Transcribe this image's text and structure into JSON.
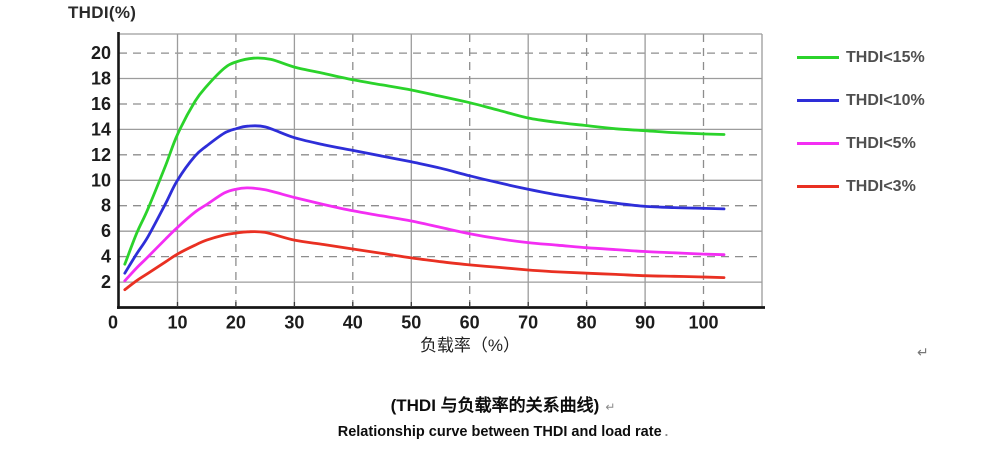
{
  "chart": {
    "y_axis_title": "THDI(%)",
    "x_axis_title": "负载率（%）"
  },
  "captions": {
    "chinese": "(THDI 与负载率的关系曲线)",
    "english": "Relationship curve between THDI and load rate"
  },
  "marks": {
    "return_mark": "↵",
    "dot_mark": "."
  },
  "chart_data": {
    "type": "line",
    "title": "",
    "xlabel": "负载率（%）",
    "ylabel": "THDI(%)",
    "xlim": [
      0,
      110
    ],
    "ylim": [
      0,
      21.5
    ],
    "x_ticks": [
      0,
      10,
      20,
      30,
      40,
      50,
      60,
      70,
      80,
      90,
      100
    ],
    "y_ticks": [
      2,
      4,
      6,
      8,
      10,
      12,
      14,
      16,
      18,
      20
    ],
    "grid": "on",
    "legend_position": "right",
    "x_gridlines": [
      {
        "v": 10,
        "dash": false
      },
      {
        "v": 20,
        "dash": true
      },
      {
        "v": 30,
        "dash": false
      },
      {
        "v": 40,
        "dash": true
      },
      {
        "v": 50,
        "dash": false
      },
      {
        "v": 60,
        "dash": true
      },
      {
        "v": 70,
        "dash": false
      },
      {
        "v": 80,
        "dash": true
      },
      {
        "v": 90,
        "dash": false
      },
      {
        "v": 100,
        "dash": true
      }
    ],
    "y_gridlines": [
      {
        "v": 2,
        "dash": false
      },
      {
        "v": 4,
        "dash": true
      },
      {
        "v": 6,
        "dash": false
      },
      {
        "v": 8,
        "dash": true
      },
      {
        "v": 10,
        "dash": false
      },
      {
        "v": 12,
        "dash": true
      },
      {
        "v": 14,
        "dash": false
      },
      {
        "v": 16,
        "dash": true
      },
      {
        "v": 18,
        "dash": false
      },
      {
        "v": 20,
        "dash": true
      }
    ],
    "series": [
      {
        "name": "thdi-15",
        "label": "THDI<15%",
        "color": "#2bd32b",
        "points": [
          [
            1,
            3.4
          ],
          [
            3,
            5.8
          ],
          [
            5,
            7.8
          ],
          [
            8,
            11.2
          ],
          [
            10,
            13.6
          ],
          [
            13,
            16.2
          ],
          [
            15,
            17.4
          ],
          [
            18,
            18.8
          ],
          [
            20,
            19.3
          ],
          [
            23,
            19.6
          ],
          [
            26,
            19.5
          ],
          [
            30,
            18.9
          ],
          [
            35,
            18.4
          ],
          [
            40,
            17.9
          ],
          [
            45,
            17.5
          ],
          [
            50,
            17.1
          ],
          [
            55,
            16.6
          ],
          [
            60,
            16.1
          ],
          [
            65,
            15.5
          ],
          [
            70,
            14.9
          ],
          [
            75,
            14.55
          ],
          [
            80,
            14.3
          ],
          [
            85,
            14.05
          ],
          [
            90,
            13.9
          ],
          [
            95,
            13.75
          ],
          [
            100,
            13.65
          ],
          [
            103.5,
            13.6
          ]
        ]
      },
      {
        "name": "thdi-10",
        "label": "THDI<10%",
        "color": "#2e2ed8",
        "points": [
          [
            1,
            2.7
          ],
          [
            3,
            4.2
          ],
          [
            5,
            5.6
          ],
          [
            8,
            8.2
          ],
          [
            10,
            10.0
          ],
          [
            13,
            11.9
          ],
          [
            15,
            12.7
          ],
          [
            18,
            13.7
          ],
          [
            20,
            14.05
          ],
          [
            22,
            14.25
          ],
          [
            25,
            14.2
          ],
          [
            30,
            13.35
          ],
          [
            35,
            12.8
          ],
          [
            40,
            12.35
          ],
          [
            45,
            11.9
          ],
          [
            50,
            11.45
          ],
          [
            55,
            10.95
          ],
          [
            60,
            10.35
          ],
          [
            65,
            9.8
          ],
          [
            70,
            9.3
          ],
          [
            75,
            8.85
          ],
          [
            80,
            8.5
          ],
          [
            85,
            8.2
          ],
          [
            90,
            7.95
          ],
          [
            95,
            7.85
          ],
          [
            100,
            7.8
          ],
          [
            103.5,
            7.75
          ]
        ]
      },
      {
        "name": "thdi-5",
        "label": "THDI<5%",
        "color": "#f32ef3",
        "points": [
          [
            1,
            2.1
          ],
          [
            3,
            3.1
          ],
          [
            5,
            4.0
          ],
          [
            8,
            5.4
          ],
          [
            10,
            6.3
          ],
          [
            13,
            7.5
          ],
          [
            15,
            8.1
          ],
          [
            18,
            9.0
          ],
          [
            20,
            9.3
          ],
          [
            22,
            9.4
          ],
          [
            25,
            9.25
          ],
          [
            30,
            8.65
          ],
          [
            35,
            8.1
          ],
          [
            40,
            7.6
          ],
          [
            45,
            7.2
          ],
          [
            50,
            6.8
          ],
          [
            55,
            6.3
          ],
          [
            60,
            5.8
          ],
          [
            65,
            5.4
          ],
          [
            70,
            5.1
          ],
          [
            75,
            4.9
          ],
          [
            80,
            4.7
          ],
          [
            85,
            4.55
          ],
          [
            90,
            4.4
          ],
          [
            95,
            4.3
          ],
          [
            100,
            4.2
          ],
          [
            103.5,
            4.15
          ]
        ]
      },
      {
        "name": "thdi-3",
        "label": "THDI<3%",
        "color": "#e93022",
        "points": [
          [
            1,
            1.4
          ],
          [
            3,
            2.1
          ],
          [
            5,
            2.7
          ],
          [
            8,
            3.6
          ],
          [
            10,
            4.2
          ],
          [
            13,
            4.9
          ],
          [
            15,
            5.3
          ],
          [
            18,
            5.7
          ],
          [
            20,
            5.85
          ],
          [
            22,
            5.95
          ],
          [
            25,
            5.9
          ],
          [
            30,
            5.3
          ],
          [
            35,
            4.95
          ],
          [
            40,
            4.6
          ],
          [
            45,
            4.25
          ],
          [
            50,
            3.9
          ],
          [
            55,
            3.6
          ],
          [
            60,
            3.35
          ],
          [
            65,
            3.15
          ],
          [
            70,
            2.95
          ],
          [
            75,
            2.8
          ],
          [
            80,
            2.7
          ],
          [
            85,
            2.6
          ],
          [
            90,
            2.5
          ],
          [
            95,
            2.45
          ],
          [
            100,
            2.4
          ],
          [
            103.5,
            2.35
          ]
        ]
      }
    ]
  }
}
